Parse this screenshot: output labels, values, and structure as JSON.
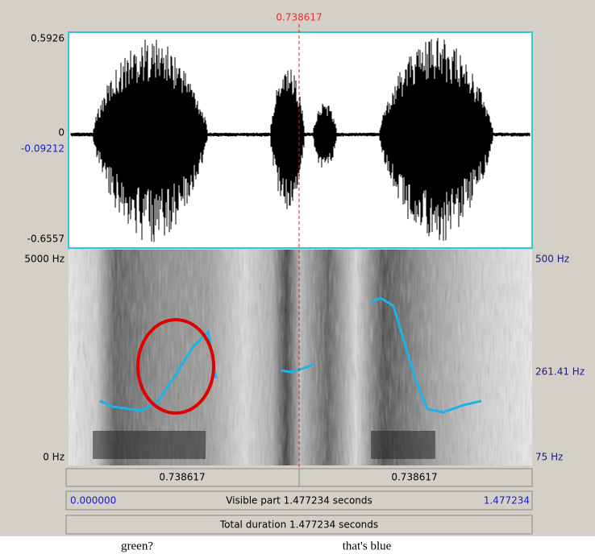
{
  "cursor_label": "0.738617",
  "waveform": {
    "y_labels": [
      "0.5926",
      "0",
      "-0.6557"
    ],
    "cursor_value": "-0.09212"
  },
  "spectrogram": {
    "left_labels": [
      "5000 Hz",
      "0 Hz"
    ],
    "right_labels": [
      "500 Hz",
      "261.41 Hz",
      "75 Hz"
    ]
  },
  "bars": {
    "segments": [
      "0.738617",
      "0.738617"
    ],
    "visible": {
      "start": "0.000000",
      "label": "Visible part 1.477234 seconds",
      "end": "1.477234"
    },
    "total": "Total duration 1.477234 seconds"
  },
  "tiers": [
    "green?",
    "that's blue"
  ]
}
